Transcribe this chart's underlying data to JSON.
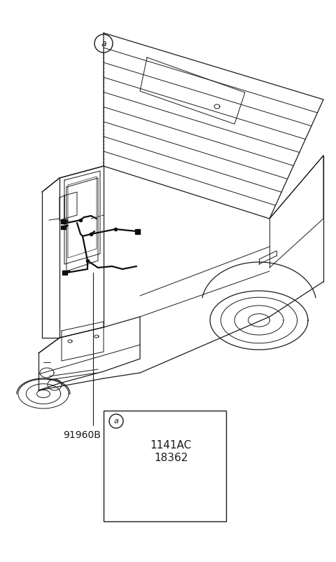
{
  "bg_color": "#ffffff",
  "line_color": "#1a1a1a",
  "fig_width": 4.8,
  "fig_height": 8.02,
  "dpi": 100,
  "part_label_main": "91960B",
  "part_label_sub1": "1141AC",
  "part_label_sub2": "18362",
  "callout_letter": "a",
  "label_fontsize": 10,
  "callout_fontsize": 9,
  "detail_fontsize": 11,
  "car_lw": 0.9,
  "detail_lw": 0.7
}
